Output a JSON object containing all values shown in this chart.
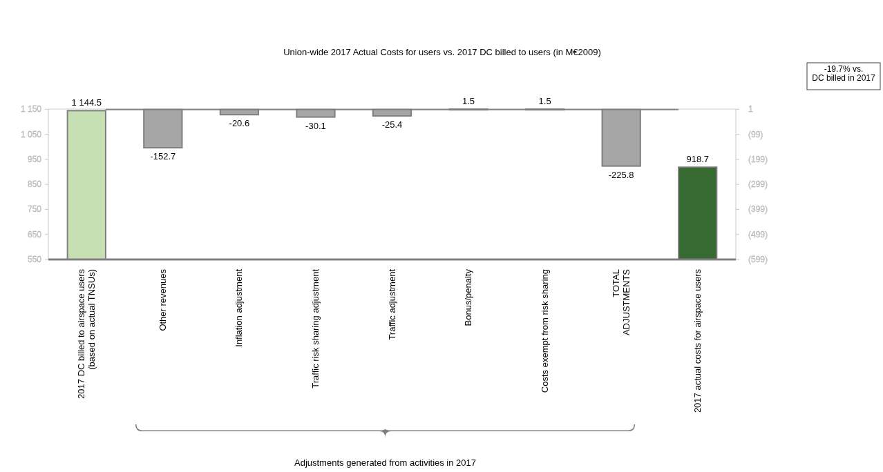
{
  "chart_data": {
    "type": "bar",
    "title": "Union-wide 2017 Actual Costs for users vs. 2017 DC billed to users (in M€2009)",
    "categories": [
      "2017 DC billed to airspace users\n(based on actual TNSUs)",
      "Other revenues",
      "Inflation adjustment",
      "Traffic risk sharing adjustment",
      "Traffic adjustment",
      "Bonus/penalty",
      "Costs exempt from risk sharing",
      "TOTAL\nADJUSTMENTS",
      "2017 actual costs for airspace users"
    ],
    "series": [
      {
        "values": [
          1144.5,
          null,
          null,
          null,
          null,
          null,
          null,
          null,
          918.7
        ],
        "colors": [
          "#c6e0b4",
          null,
          null,
          null,
          null,
          null,
          null,
          null,
          "#376a30"
        ],
        "value_labels": [
          "1 144.5",
          null,
          null,
          null,
          null,
          null,
          null,
          null,
          "918.7"
        ]
      },
      {
        "axis": "y2",
        "color": "#a6a6a6",
        "values": [
          null,
          -152.7,
          -20.6,
          -30.1,
          -25.4,
          1.5,
          1.5,
          -225.8,
          null
        ],
        "value_labels": [
          null,
          "-152.7",
          "-20.6",
          "-30.1",
          "-25.4",
          "1.5",
          "1.5",
          "-225.8",
          null
        ]
      }
    ],
    "ylim": [
      550,
      1151
    ],
    "yticks": [
      {
        "value": 550,
        "label": "550"
      },
      {
        "value": 650,
        "label": "650"
      },
      {
        "value": 750,
        "label": "750"
      },
      {
        "value": 850,
        "label": "850"
      },
      {
        "value": 950,
        "label": "950"
      },
      {
        "value": 1050,
        "label": "1 050"
      },
      {
        "value": 1150,
        "label": "1 150"
      }
    ],
    "y2lim": [
      -599,
      2
    ],
    "y2ticks": [
      {
        "value": -599,
        "label": "(599)"
      },
      {
        "value": -499,
        "label": "(499)"
      },
      {
        "value": -399,
        "label": "(399)"
      },
      {
        "value": -299,
        "label": "(299)"
      },
      {
        "value": -199,
        "label": "(199)"
      },
      {
        "value": -99,
        "label": "(99)"
      },
      1
    ],
    "ref_lines": [
      {
        "axis": "y2",
        "value": 0,
        "color": "#808080"
      }
    ],
    "annotations": [
      "-19.7% vs.\nDC billed in 2017",
      "Adjustments generated from activities in 2017"
    ],
    "grid": false
  }
}
